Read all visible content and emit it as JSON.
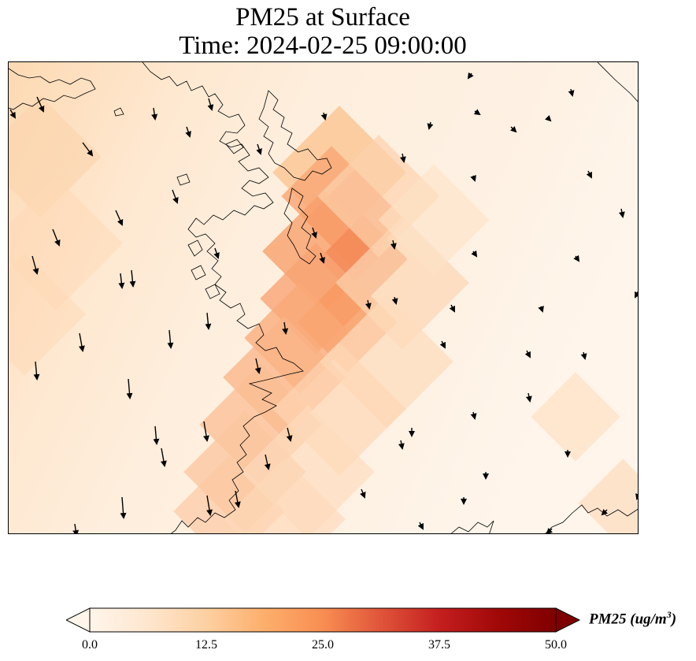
{
  "title": {
    "line1": "PM25 at Surface",
    "line2": "Time: 2024-02-25 09:00:00"
  },
  "colorbar": {
    "label": "PM25 (ug/m",
    "label_sup": "3",
    "label_close": ")",
    "ticks": [
      "0.0",
      "12.5",
      "25.0",
      "37.5",
      "50.0"
    ],
    "colormap": [
      "#fff5eb",
      "#fee6ce",
      "#fdd0a2",
      "#fdae6b",
      "#fd8d3c",
      "#f16913",
      "#d94801",
      "#a63603",
      "#7f2704"
    ],
    "extend": "both"
  },
  "map": {
    "variable": "PM25",
    "vmin": 0,
    "vmax": 50,
    "field_description": "diagonal high-concentration plume band running from upper-center to lower-left along the coastline",
    "wind_vectors": "southward/south-southeastward flow over western land; weak variable winds to the east"
  }
}
